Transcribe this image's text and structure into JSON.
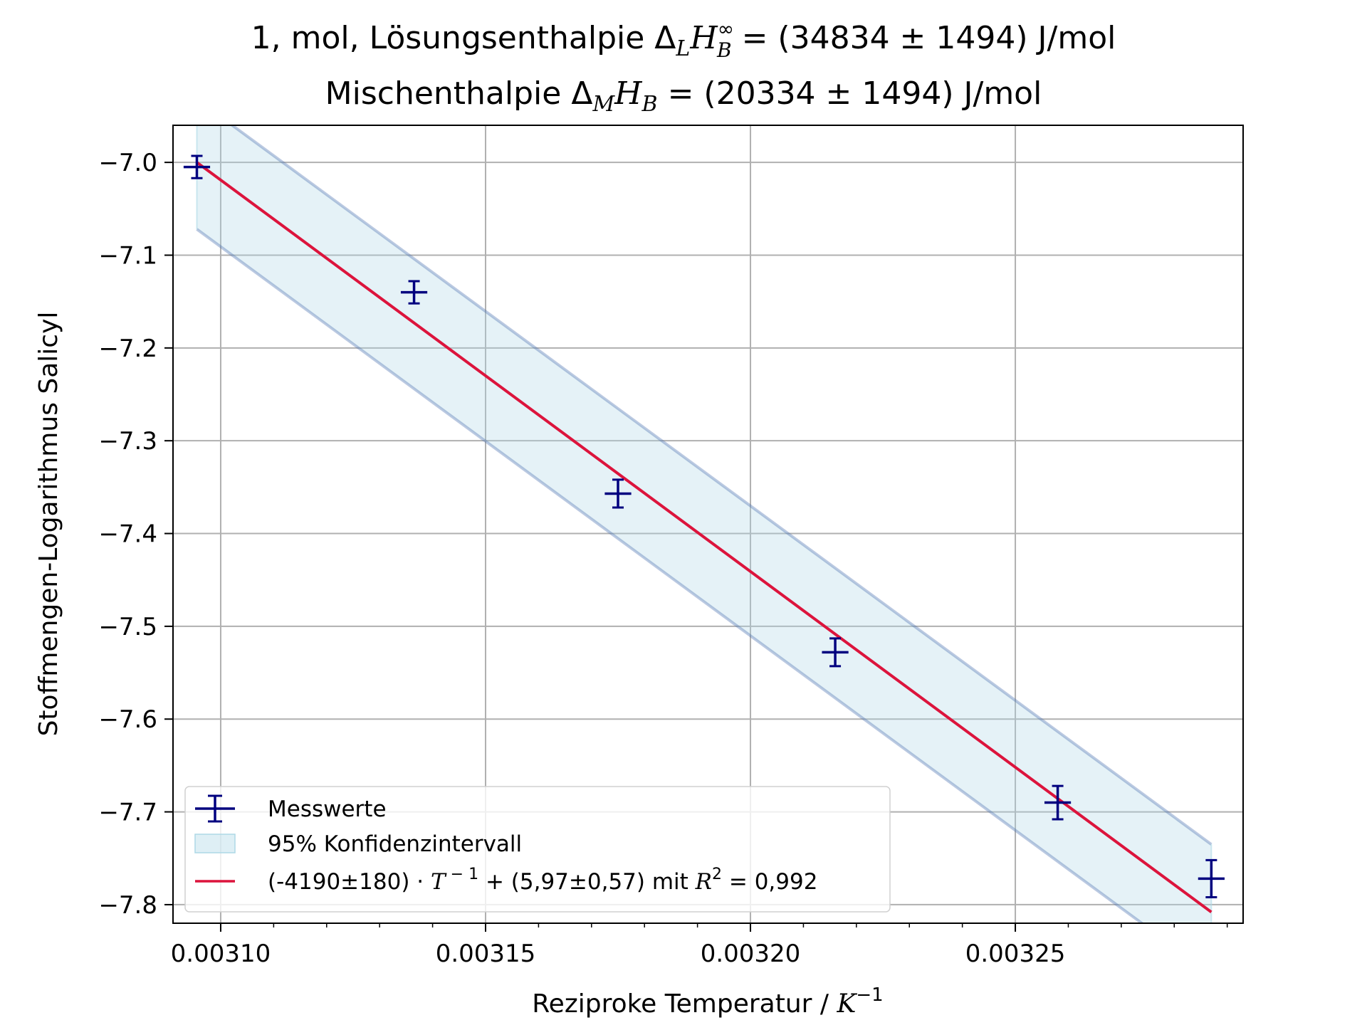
{
  "chart_data": {
    "type": "scatter",
    "title": {
      "line1": "1, mol, Lösungsenthalpie ΔLH∞B = (34834 ± 1494) J/mol",
      "line2": "Mischenthalpie ΔMHB = (20334 ± 1494) J/mol"
    },
    "title_parts": {
      "line1_prefix": "1, mol, Lösungsenthalpie Δ",
      "line1_sub": "L",
      "line1_sym": "H",
      "line1_sup": "∞",
      "line1_sub2": "B",
      "line1_suffix": " = (34834 ± 1494) J/mol",
      "line2_prefix": "Mischenthalpie Δ",
      "line2_sub": "M",
      "line2_sym": "H",
      "line2_sub2": "B",
      "line2_suffix": " =  (20334 ± 1494) J/mol"
    },
    "xlabel": "Reziproke Temperatur / K⁻¹",
    "xlabel_parts": {
      "text": "Reziproke Temperatur / ",
      "sym": "K",
      "sup": "−1"
    },
    "ylabel": "Stoffmengen-Logarithmus Salicyl",
    "xlim": [
      0.003091,
      0.003293
    ],
    "ylim": [
      -7.82,
      -6.96
    ],
    "xticks": [
      0.0031,
      0.00315,
      0.0032,
      0.00325
    ],
    "xtick_labels": [
      "0.00310",
      "0.00315",
      "0.00320",
      "0.00325"
    ],
    "yticks": [
      -7.0,
      -7.1,
      -7.2,
      -7.3,
      -7.4,
      -7.5,
      -7.6,
      -7.7,
      -7.8
    ],
    "ytick_labels": [
      "−7.0",
      "−7.1",
      "−7.2",
      "−7.3",
      "−7.4",
      "−7.5",
      "−7.6",
      "−7.7",
      "−7.8"
    ],
    "grid": true,
    "legend_position": "lower-left",
    "series": [
      {
        "name": "Messwerte",
        "kind": "errorbar-points",
        "color": "#00007f",
        "x": [
          0.0030955,
          0.0031365,
          0.003175,
          0.003216,
          0.003258,
          0.003287
        ],
        "y": [
          -7.005,
          -7.14,
          -7.357,
          -7.528,
          -7.69,
          -7.772
        ],
        "xerr": [
          2.5e-06,
          2.5e-06,
          2.5e-06,
          2.5e-06,
          2.5e-06,
          2.5e-06
        ],
        "yerr": [
          0.012,
          0.012,
          0.015,
          0.015,
          0.018,
          0.02
        ]
      },
      {
        "name": "95% Konfidenzintervall",
        "kind": "band",
        "fill_color": "#add8e6",
        "edge_color": "#4c72b0",
        "x": [
          0.0030955,
          0.003287
        ],
        "upper": [
          -6.932,
          -7.735
        ],
        "lower": [
          -7.072,
          -7.875
        ]
      },
      {
        "name": "(-4190±180) · T⁻¹ + (5,97±0,57) mit R² = 0,992",
        "legend_parts": {
          "a": "(-4190±180)",
          "dot": " · ",
          "T": "T",
          "Tsup": " − 1",
          "plus": " + (5,97±0,57) mit ",
          "R": "R",
          "Rsup": "2",
          "eq": " = 0,992"
        },
        "kind": "fit-line",
        "color": "#dc143c",
        "slope": -4190,
        "intercept": 5.97
      }
    ]
  }
}
